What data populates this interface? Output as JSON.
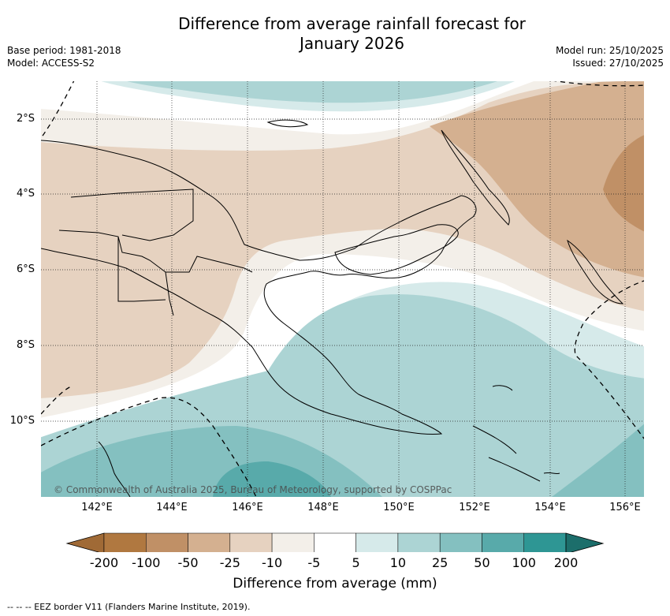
{
  "title_line1": "Difference from average rainfall forecast for",
  "title_line2": "January 2026",
  "base_period": "Base period: 1981-2018",
  "model": "Model: ACCESS-S2",
  "model_run": "Model run: 25/10/2025",
  "issued": "Issued: 27/10/2025",
  "lat_labels": [
    "2°S",
    "4°S",
    "6°S",
    "8°S",
    "10°S"
  ],
  "lon_labels": [
    "142°E",
    "144°E",
    "146°E",
    "148°E",
    "150°E",
    "152°E",
    "154°E",
    "156°E"
  ],
  "copyright": "© Commonwealth of Australia 2025, Bureau of Meteorology, supported by COSPPac",
  "colorbar": {
    "ticks": [
      "-200",
      "-100",
      "-50",
      "-25",
      "-10",
      "-5",
      "5",
      "10",
      "25",
      "50",
      "100",
      "200"
    ],
    "colors": [
      "#a06a36",
      "#b07840",
      "#c09066",
      "#d4b090",
      "#e6d2c0",
      "#f3efe9",
      "#ffffff",
      "#d6eaea",
      "#acd4d4",
      "#84c0c0",
      "#58aaaa",
      "#2e9694",
      "#1c6e6b"
    ],
    "label": "Difference from average (mm)"
  },
  "footnote": "--  --  -- EEZ border V11 (Flanders Marine Institute, 2019)."
}
